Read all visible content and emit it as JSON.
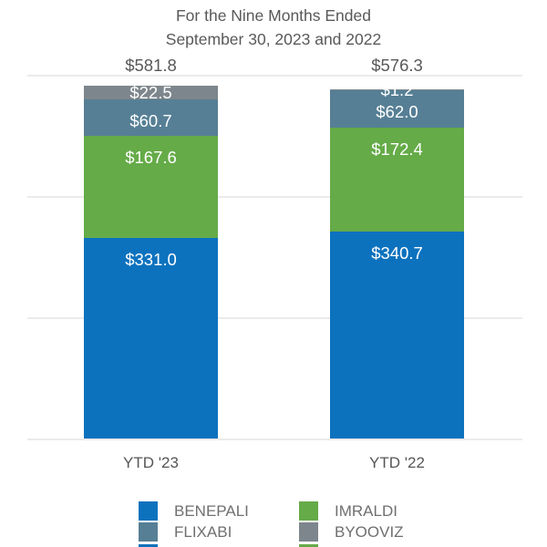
{
  "title": {
    "line1": "For the Nine Months Ended",
    "line2": "September 30, 2023 and 2022"
  },
  "chart_data": {
    "type": "bar",
    "stacked": true,
    "title": "For the Nine Months Ended September 30, 2023 and 2022",
    "categories": [
      "YTD '23",
      "YTD '22"
    ],
    "series": [
      {
        "name": "BENEPALI",
        "color": "#0d72be",
        "values": [
          331.0,
          340.7
        ],
        "data_labels": [
          "$331.0",
          "$340.7"
        ]
      },
      {
        "name": "IMRALDI",
        "color": "#65ab48",
        "values": [
          167.6,
          172.4
        ],
        "data_labels": [
          "$167.6",
          "$172.4"
        ]
      },
      {
        "name": "FLIXABI",
        "color": "#567f95",
        "values": [
          60.7,
          62.0
        ],
        "data_labels": [
          "$60.7",
          "$62.0"
        ]
      },
      {
        "name": "BYOOVIZ",
        "color": "#7d868c",
        "values": [
          22.5,
          1.2
        ],
        "data_labels": [
          "$22.5",
          "$1.2"
        ]
      }
    ],
    "totals": [
      581.8,
      576.3
    ],
    "total_labels": [
      "$581.8",
      "$576.3"
    ],
    "ylim": [
      0,
      600
    ],
    "gridline_values": [
      600,
      400,
      200,
      0
    ],
    "grid": true,
    "legend_position": "bottom"
  },
  "legend": {
    "items": [
      {
        "label": "BENEPALI",
        "color": "#0d72be"
      },
      {
        "label": "IMRALDI",
        "color": "#65ab48"
      },
      {
        "label": "FLIXABI",
        "color": "#567f95"
      },
      {
        "label": "BYOOVIZ",
        "color": "#7d868c"
      }
    ],
    "cutoff_row_swatch_colors": [
      "#0d72be",
      "#65ab48"
    ]
  },
  "colors": {
    "title_text": "#58595b",
    "value_text": "#595959",
    "axis_text": "#565656",
    "legend_text": "#6f6f6f",
    "gridline": "#ebebeb",
    "segment_label_text": "#ffffff",
    "background": "#ffffff"
  }
}
